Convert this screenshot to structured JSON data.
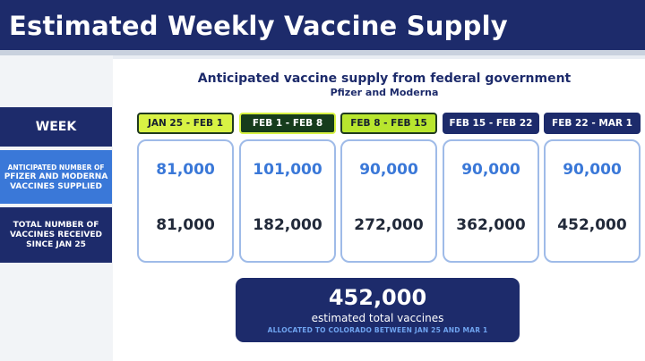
{
  "header": {
    "title": "Estimated Weekly Vaccine Supply"
  },
  "chart_data": {
    "type": "table",
    "title": "Anticipated vaccine supply from federal government",
    "subtitle": "Pfizer and Moderna",
    "row_labels": {
      "week": "WEEK",
      "anticipated_line1": "ANTICIPATED NUMBER OF",
      "anticipated_line2": "PFIZER AND MODERNA VACCINES SUPPLIED",
      "total": "TOTAL NUMBER OF VACCINES RECEIVED SINCE JAN 25"
    },
    "categories": [
      "JAN 25 - FEB 1",
      "FEB 1 - FEB 8",
      "FEB 8 - FEB 15",
      "FEB 15 - FEB 22",
      "FEB 22 - MAR 1"
    ],
    "series": [
      {
        "name": "ANTICIPATED NUMBER OF PFIZER AND MODERNA VACCINES SUPPLIED",
        "values": [
          81000,
          101000,
          90000,
          90000,
          90000
        ],
        "labels": [
          "81,000",
          "101,000",
          "90,000",
          "90,000",
          "90,000"
        ]
      },
      {
        "name": "TOTAL NUMBER OF VACCINES RECEIVED SINCE JAN 25",
        "values": [
          81000,
          182000,
          272000,
          362000,
          452000
        ],
        "labels": [
          "81,000",
          "182,000",
          "272,000",
          "362,000",
          "452,000"
        ]
      }
    ],
    "week_styles": [
      "green",
      "dark-green",
      "mid-green",
      "navy",
      "navy"
    ],
    "total": {
      "value": 452000,
      "label": "452,000",
      "caption": "estimated total vaccines",
      "note": "ALLOCATED TO COLORADO BETWEEN JAN 25 AND MAR 1"
    },
    "colors": {
      "navy": "#1d2b6b",
      "blue": "#3a78d8",
      "lime": "#d8f244",
      "dark_green": "#163c1c"
    }
  }
}
